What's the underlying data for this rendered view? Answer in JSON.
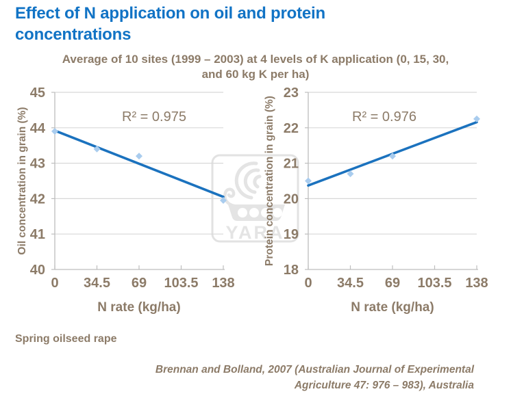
{
  "title": "Effect of N application on oil and protein concentrations",
  "subtitle_lines": [
    "Average of  10 sites (1999 – 2003) at 4 levels of K application (0, 15, 30,",
    "and 60 kg K per ha)"
  ],
  "watermark": {
    "text": "YARA"
  },
  "footer": {
    "crop_note": "Spring oilseed rape",
    "citation_lines": [
      "Brennan and Bolland, 2007 (Australian Journal of Experimental",
      "Agriculture 47: 976 – 983), Australia"
    ]
  },
  "colors": {
    "title_blue": "#1173C5",
    "text_brown": "#8C7B68",
    "trend_line": "#1B72BE",
    "marker_fill": "#A9CCEE",
    "gridline": "#D8D8D8",
    "axis": "#BDBDBD",
    "watermark_gray": "#E4E4E4"
  },
  "chart_data": [
    {
      "type": "scatter",
      "r2_label": "R² = 0.975",
      "xlabel": "N rate (kg/ha)",
      "ylabel": "Oil concentration in grain (%)",
      "xlim": [
        0,
        138
      ],
      "ylim": [
        40,
        45
      ],
      "x_ticks": [
        0,
        34.5,
        69,
        103.5,
        138
      ],
      "x_tick_labels": [
        "0",
        "34.5",
        "69",
        "103.5",
        "138"
      ],
      "y_ticks": [
        40,
        41,
        42,
        43,
        44,
        45
      ],
      "grid": true,
      "marker": "diamond",
      "x": [
        0,
        34.5,
        69,
        138
      ],
      "y": [
        43.9,
        43.4,
        43.2,
        41.95
      ],
      "trendline": {
        "x": [
          0,
          138
        ],
        "y": [
          43.92,
          42.05
        ]
      }
    },
    {
      "type": "scatter",
      "r2_label": "R² = 0.976",
      "xlabel": "N rate (kg/ha)",
      "ylabel": "Protein concentration in grain (%)",
      "xlim": [
        0,
        138
      ],
      "ylim": [
        18,
        23
      ],
      "x_ticks": [
        0,
        34.5,
        69,
        103.5,
        138
      ],
      "x_tick_labels": [
        "0",
        "34.5",
        "69",
        "103.5",
        "138"
      ],
      "y_ticks": [
        18,
        19,
        20,
        21,
        22,
        23
      ],
      "grid": true,
      "marker": "diamond",
      "x": [
        0,
        34.5,
        69,
        138
      ],
      "y": [
        20.5,
        20.7,
        21.2,
        22.25
      ],
      "trendline": {
        "x": [
          0,
          138
        ],
        "y": [
          20.37,
          22.16
        ]
      }
    }
  ]
}
